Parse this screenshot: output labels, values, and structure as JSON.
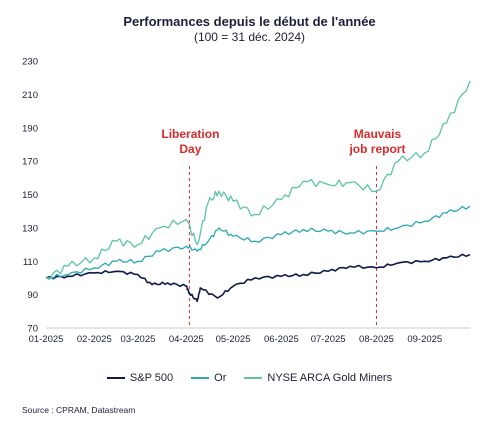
{
  "chart_data": {
    "type": "line",
    "title": "Performances depuis le début de l'année",
    "subtitle": "(100 = 31 déc. 2024)",
    "xlabel": "",
    "ylabel": "",
    "ylim": [
      70,
      230
    ],
    "yticks": [
      70,
      90,
      110,
      130,
      150,
      170,
      190,
      210,
      230
    ],
    "xlim": [
      "2025-01-01",
      "2025-09-30"
    ],
    "xticks": [
      "01-2025",
      "02-2025",
      "03-2025",
      "04-2025",
      "05-2025",
      "06-2025",
      "07-2025",
      "08-2025",
      "09-2025"
    ],
    "grid": false,
    "legend_position": "bottom",
    "series": [
      {
        "name": "S&P 500",
        "color": "#0e1a4b",
        "x": [
          "2025-01-01",
          "2025-01-15",
          "2025-02-01",
          "2025-02-15",
          "2025-03-01",
          "2025-03-10",
          "2025-03-20",
          "2025-04-01",
          "2025-04-03",
          "2025-04-08",
          "2025-04-10",
          "2025-04-21",
          "2025-05-01",
          "2025-05-15",
          "2025-06-01",
          "2025-06-15",
          "2025-07-01",
          "2025-07-15",
          "2025-08-01",
          "2025-08-15",
          "2025-09-01",
          "2025-09-15",
          "2025-09-30"
        ],
        "values": [
          100,
          101,
          103,
          104,
          102,
          96,
          97,
          95,
          91,
          86,
          94,
          88,
          95,
          100,
          101,
          102,
          104,
          107,
          106,
          109,
          110,
          112,
          114
        ]
      },
      {
        "name": "Or",
        "color": "#2aa8b0",
        "x": [
          "2025-01-01",
          "2025-01-15",
          "2025-02-01",
          "2025-02-15",
          "2025-03-01",
          "2025-03-15",
          "2025-04-01",
          "2025-04-08",
          "2025-04-15",
          "2025-04-22",
          "2025-05-01",
          "2025-05-15",
          "2025-06-01",
          "2025-06-15",
          "2025-07-01",
          "2025-07-15",
          "2025-08-01",
          "2025-08-15",
          "2025-09-01",
          "2025-09-15",
          "2025-09-30"
        ],
        "values": [
          100,
          102,
          106,
          110,
          110,
          116,
          119,
          116,
          122,
          130,
          125,
          122,
          126,
          129,
          128,
          127,
          128,
          130,
          134,
          139,
          143
        ]
      },
      {
        "name": "NYSE ARCA Gold Miners",
        "color": "#5cc4a8",
        "x": [
          "2025-01-01",
          "2025-01-15",
          "2025-02-01",
          "2025-02-15",
          "2025-03-01",
          "2025-03-15",
          "2025-04-01",
          "2025-04-08",
          "2025-04-15",
          "2025-04-22",
          "2025-05-01",
          "2025-05-15",
          "2025-06-01",
          "2025-06-15",
          "2025-07-01",
          "2025-07-15",
          "2025-08-01",
          "2025-08-15",
          "2025-09-01",
          "2025-09-15",
          "2025-09-30"
        ],
        "values": [
          100,
          107,
          112,
          122,
          120,
          130,
          135,
          120,
          145,
          152,
          146,
          138,
          147,
          158,
          156,
          157,
          152,
          170,
          175,
          193,
          218
        ]
      }
    ],
    "annotations": [
      {
        "label_line1": "Liberation",
        "label_line2": "Day",
        "x": "2025-04-03",
        "color": "#d92b2b"
      },
      {
        "label_line1": "Mauvais",
        "label_line2": "job report",
        "x": "2025-08-01",
        "color": "#d92b2b"
      }
    ]
  },
  "source": "Source : CPRAM, Datastream"
}
